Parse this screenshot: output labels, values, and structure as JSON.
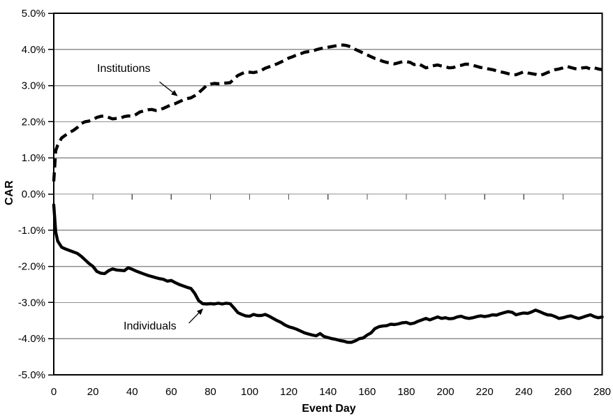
{
  "chart_data": {
    "type": "line",
    "title": "",
    "xlabel": "Event Day",
    "ylabel": "CAR",
    "xlim": [
      0,
      280
    ],
    "ylim": [
      -5,
      5
    ],
    "grid": "horizontal",
    "legend_position": "none",
    "colors": {
      "line": "#000000",
      "gridline": "#8f8f8f",
      "axis": "#000000",
      "background": "#ffffff"
    },
    "x_ticks": [
      0,
      20,
      40,
      60,
      80,
      100,
      120,
      140,
      160,
      180,
      200,
      220,
      240,
      260,
      280
    ],
    "y_ticks": [
      {
        "value": 5,
        "label": "5.0%"
      },
      {
        "value": 4,
        "label": "4.0%"
      },
      {
        "value": 3,
        "label": "3.0%"
      },
      {
        "value": 2,
        "label": "2.0%"
      },
      {
        "value": 1,
        "label": "1.0%"
      },
      {
        "value": 0,
        "label": "0.0%"
      },
      {
        "value": -1,
        "label": "-1.0%"
      },
      {
        "value": -2,
        "label": "-2.0%"
      },
      {
        "value": -3,
        "label": "-3.0%"
      },
      {
        "value": -4,
        "label": "-4.0%"
      },
      {
        "value": -5,
        "label": "-5.0%"
      }
    ],
    "x": [
      0,
      1,
      2,
      4,
      6,
      8,
      10,
      12,
      14,
      16,
      18,
      20,
      22,
      24,
      26,
      28,
      30,
      32,
      34,
      36,
      38,
      40,
      42,
      44,
      46,
      48,
      50,
      52,
      54,
      56,
      58,
      60,
      62,
      64,
      66,
      68,
      70,
      72,
      74,
      76,
      78,
      80,
      82,
      84,
      86,
      88,
      90,
      92,
      94,
      96,
      98,
      100,
      102,
      104,
      106,
      108,
      110,
      112,
      114,
      116,
      118,
      120,
      122,
      124,
      126,
      128,
      130,
      132,
      134,
      136,
      138,
      140,
      142,
      144,
      146,
      148,
      150,
      152,
      154,
      156,
      158,
      160,
      162,
      164,
      166,
      168,
      170,
      172,
      174,
      176,
      178,
      180,
      182,
      184,
      186,
      188,
      190,
      192,
      194,
      196,
      198,
      200,
      202,
      204,
      206,
      208,
      210,
      212,
      214,
      216,
      218,
      220,
      222,
      224,
      226,
      228,
      230,
      232,
      234,
      236,
      238,
      240,
      242,
      244,
      246,
      248,
      250,
      252,
      254,
      256,
      258,
      260,
      262,
      264,
      266,
      268,
      270,
      272,
      274,
      276,
      278,
      280
    ],
    "series": [
      {
        "name": "Institutions",
        "line_style": "dashed",
        "values": [
          0.35,
          1.2,
          1.35,
          1.55,
          1.63,
          1.7,
          1.76,
          1.84,
          1.95,
          2.0,
          2.02,
          2.06,
          2.12,
          2.15,
          2.16,
          2.12,
          2.08,
          2.09,
          2.1,
          2.14,
          2.16,
          2.15,
          2.2,
          2.27,
          2.3,
          2.33,
          2.34,
          2.31,
          2.33,
          2.37,
          2.42,
          2.47,
          2.5,
          2.55,
          2.6,
          2.64,
          2.66,
          2.72,
          2.8,
          2.9,
          3.0,
          3.04,
          3.06,
          3.05,
          3.06,
          3.07,
          3.08,
          3.18,
          3.28,
          3.33,
          3.38,
          3.37,
          3.36,
          3.38,
          3.42,
          3.48,
          3.52,
          3.56,
          3.6,
          3.65,
          3.7,
          3.76,
          3.8,
          3.85,
          3.88,
          3.92,
          3.94,
          3.95,
          3.99,
          4.02,
          4.04,
          4.06,
          4.08,
          4.1,
          4.12,
          4.12,
          4.1,
          4.06,
          4.0,
          3.95,
          3.9,
          3.85,
          3.8,
          3.75,
          3.72,
          3.67,
          3.64,
          3.62,
          3.6,
          3.63,
          3.66,
          3.66,
          3.64,
          3.58,
          3.61,
          3.55,
          3.49,
          3.52,
          3.55,
          3.57,
          3.54,
          3.52,
          3.49,
          3.5,
          3.54,
          3.56,
          3.59,
          3.59,
          3.56,
          3.53,
          3.5,
          3.49,
          3.46,
          3.44,
          3.41,
          3.38,
          3.36,
          3.33,
          3.3,
          3.3,
          3.34,
          3.38,
          3.35,
          3.33,
          3.31,
          3.28,
          3.31,
          3.36,
          3.4,
          3.44,
          3.46,
          3.49,
          3.53,
          3.5,
          3.47,
          3.46,
          3.49,
          3.5,
          3.46,
          3.49,
          3.46,
          3.44
        ]
      },
      {
        "name": "Individuals",
        "line_style": "solid",
        "values": [
          -0.3,
          -1.05,
          -1.3,
          -1.47,
          -1.52,
          -1.56,
          -1.6,
          -1.64,
          -1.72,
          -1.82,
          -1.92,
          -2.0,
          -2.14,
          -2.19,
          -2.2,
          -2.12,
          -2.07,
          -2.1,
          -2.11,
          -2.12,
          -2.04,
          -2.08,
          -2.13,
          -2.17,
          -2.21,
          -2.25,
          -2.28,
          -2.31,
          -2.34,
          -2.36,
          -2.41,
          -2.39,
          -2.45,
          -2.5,
          -2.54,
          -2.58,
          -2.61,
          -2.75,
          -2.95,
          -3.03,
          -3.04,
          -3.03,
          -3.04,
          -3.02,
          -3.04,
          -3.02,
          -3.03,
          -3.15,
          -3.28,
          -3.33,
          -3.37,
          -3.38,
          -3.33,
          -3.36,
          -3.36,
          -3.33,
          -3.38,
          -3.44,
          -3.5,
          -3.55,
          -3.62,
          -3.67,
          -3.7,
          -3.74,
          -3.79,
          -3.84,
          -3.87,
          -3.9,
          -3.92,
          -3.86,
          -3.94,
          -3.97,
          -4.0,
          -4.02,
          -4.05,
          -4.07,
          -4.1,
          -4.1,
          -4.06,
          -4.0,
          -3.98,
          -3.9,
          -3.84,
          -3.72,
          -3.67,
          -3.65,
          -3.64,
          -3.6,
          -3.61,
          -3.59,
          -3.56,
          -3.55,
          -3.59,
          -3.57,
          -3.52,
          -3.48,
          -3.44,
          -3.48,
          -3.44,
          -3.4,
          -3.44,
          -3.42,
          -3.45,
          -3.44,
          -3.4,
          -3.38,
          -3.42,
          -3.44,
          -3.42,
          -3.39,
          -3.37,
          -3.39,
          -3.37,
          -3.34,
          -3.35,
          -3.31,
          -3.28,
          -3.25,
          -3.27,
          -3.34,
          -3.31,
          -3.29,
          -3.3,
          -3.26,
          -3.21,
          -3.25,
          -3.3,
          -3.34,
          -3.35,
          -3.39,
          -3.44,
          -3.42,
          -3.39,
          -3.37,
          -3.41,
          -3.44,
          -3.41,
          -3.37,
          -3.34,
          -3.39,
          -3.42,
          -3.4
        ]
      }
    ],
    "annotations": [
      {
        "label": "Institutions",
        "arrow": {
          "from": {
            "day": 54,
            "car": 3.1
          },
          "to": {
            "day": 63,
            "car": 2.72
          }
        }
      },
      {
        "label": "Individuals",
        "arrow": {
          "from": {
            "day": 69,
            "car": -3.57
          },
          "to": {
            "day": 76,
            "car": -3.18
          }
        }
      }
    ]
  }
}
